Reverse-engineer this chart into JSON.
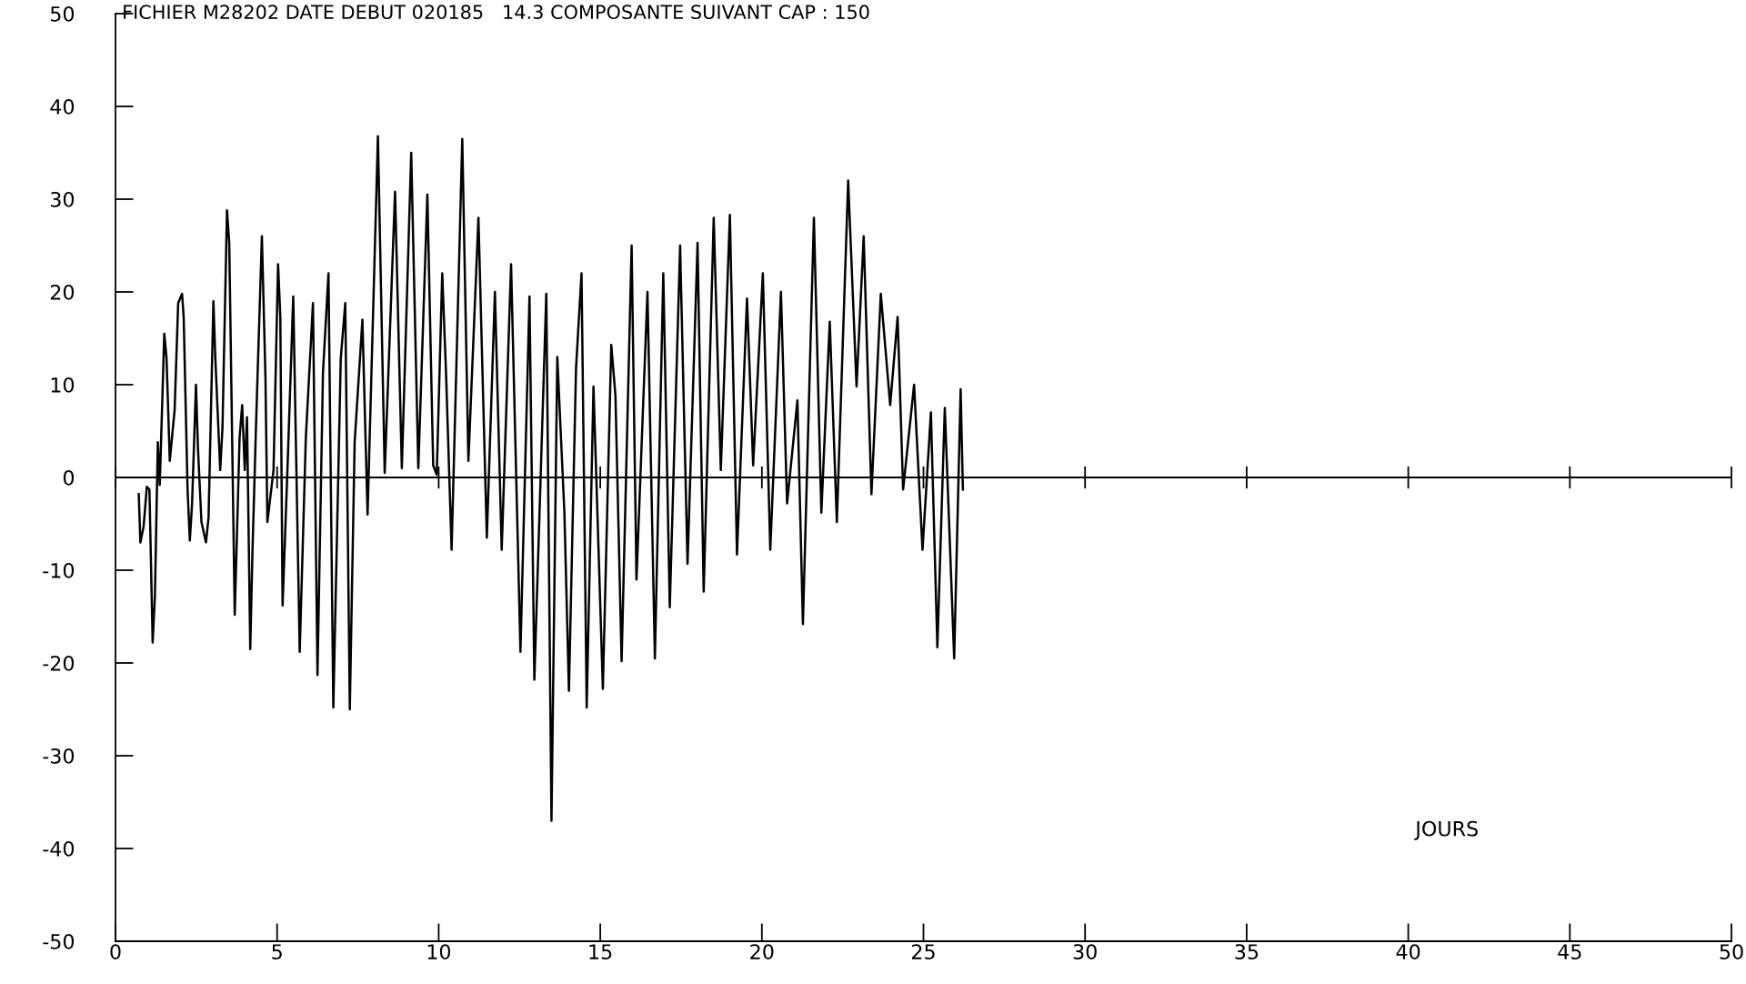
{
  "chart_data": {
    "type": "line",
    "title": "FICHIER M28202 DATE DEBUT 020185   14.3 COMPOSANTE SUIVANT CAP : 150",
    "xlabel": "JOURS",
    "xlim": [
      0,
      50
    ],
    "ylim": [
      -50,
      50
    ],
    "xticks": [
      0,
      5,
      10,
      15,
      20,
      25,
      30,
      35,
      40,
      45,
      50
    ],
    "yticks": [
      -50,
      -40,
      -30,
      -20,
      -10,
      0,
      10,
      20,
      30,
      40,
      50
    ],
    "grid": false,
    "legend": false,
    "marker": "none",
    "line_style": "solid",
    "ref_lines": [
      {
        "axis": "y",
        "value": 0,
        "color": "#000000"
      }
    ],
    "series": [
      {
        "color": "#000000",
        "x": [
          0.72,
          0.77,
          0.87,
          0.97,
          1.05,
          1.15,
          1.22,
          1.31,
          1.37,
          1.51,
          1.58,
          1.68,
          1.83,
          1.94,
          2.06,
          2.11,
          2.23,
          2.3,
          2.37,
          2.49,
          2.55,
          2.66,
          2.8,
          2.88,
          3.03,
          3.09,
          3.24,
          3.31,
          3.45,
          3.52,
          3.69,
          3.84,
          3.92,
          4.0,
          4.07,
          4.17,
          4.24,
          4.35,
          4.53,
          4.64,
          4.7,
          4.89,
          5.03,
          5.1,
          5.17,
          5.32,
          5.5,
          5.7,
          5.89,
          6.11,
          6.25,
          6.42,
          6.59,
          6.74,
          6.97,
          7.11,
          7.25,
          7.4,
          7.64,
          7.8,
          8.12,
          8.33,
          8.65,
          8.86,
          9.15,
          9.37,
          9.65,
          9.83,
          9.94,
          10.11,
          10.23,
          10.4,
          10.73,
          10.92,
          11.23,
          11.49,
          11.74,
          11.95,
          12.24,
          12.53,
          12.81,
          12.96,
          13.33,
          13.49,
          13.67,
          13.89,
          14.03,
          14.25,
          14.42,
          14.58,
          14.79,
          15.08,
          15.34,
          15.47,
          15.66,
          15.97,
          16.12,
          16.46,
          16.69,
          16.95,
          17.15,
          17.47,
          17.7,
          18.01,
          18.2,
          18.51,
          18.73,
          19.01,
          19.23,
          19.54,
          19.73,
          20.03,
          20.26,
          20.59,
          20.78,
          21.1,
          21.27,
          21.61,
          21.84,
          22.1,
          22.32,
          22.67,
          22.93,
          23.15,
          23.39,
          23.68,
          23.97,
          24.2,
          24.37,
          24.71,
          24.97,
          25.23,
          25.43,
          25.66,
          25.95,
          26.15,
          26.22
        ],
        "values": [
          -1.8,
          -7.0,
          -5.3,
          -1.0,
          -1.3,
          -17.8,
          -12.8,
          3.8,
          -0.8,
          15.5,
          12.8,
          1.8,
          7.3,
          18.8,
          19.8,
          17.3,
          -1.3,
          -6.8,
          -2.8,
          10.0,
          3.3,
          -4.8,
          -7.0,
          -4.3,
          19.0,
          12.8,
          0.8,
          5.3,
          28.8,
          25.3,
          -14.8,
          4.3,
          7.8,
          0.8,
          6.5,
          -18.5,
          -7.8,
          5.8,
          26.0,
          10.8,
          -4.8,
          0.8,
          23.0,
          17.3,
          -13.8,
          0.8,
          19.5,
          -18.8,
          4.3,
          18.8,
          -21.3,
          11.3,
          22.0,
          -24.8,
          12.8,
          18.8,
          -25.0,
          3.8,
          17.0,
          -4.0,
          36.8,
          0.5,
          30.8,
          1.0,
          35.0,
          1.0,
          30.5,
          1.3,
          0.3,
          22.0,
          11.0,
          -7.8,
          36.5,
          1.8,
          28.0,
          -6.5,
          20.0,
          -7.8,
          23.0,
          -18.8,
          19.5,
          -21.8,
          19.8,
          -37.0,
          13.0,
          -3.8,
          -23.0,
          11.8,
          22.0,
          -24.8,
          9.8,
          -22.8,
          14.3,
          8.8,
          -19.8,
          25.0,
          -11.0,
          20.0,
          -19.5,
          22.0,
          -14.0,
          25.0,
          -9.3,
          25.3,
          -12.3,
          28.0,
          0.8,
          28.3,
          -8.3,
          19.3,
          1.3,
          22.0,
          -7.8,
          20.0,
          -2.8,
          8.3,
          -15.8,
          28.0,
          -3.8,
          16.8,
          -4.8,
          32.0,
          9.8,
          26.0,
          -1.8,
          19.8,
          7.8,
          17.3,
          -1.3,
          10.0,
          -7.8,
          7.0,
          -18.3,
          7.5,
          -19.5,
          9.5,
          -1.3
        ]
      }
    ]
  }
}
